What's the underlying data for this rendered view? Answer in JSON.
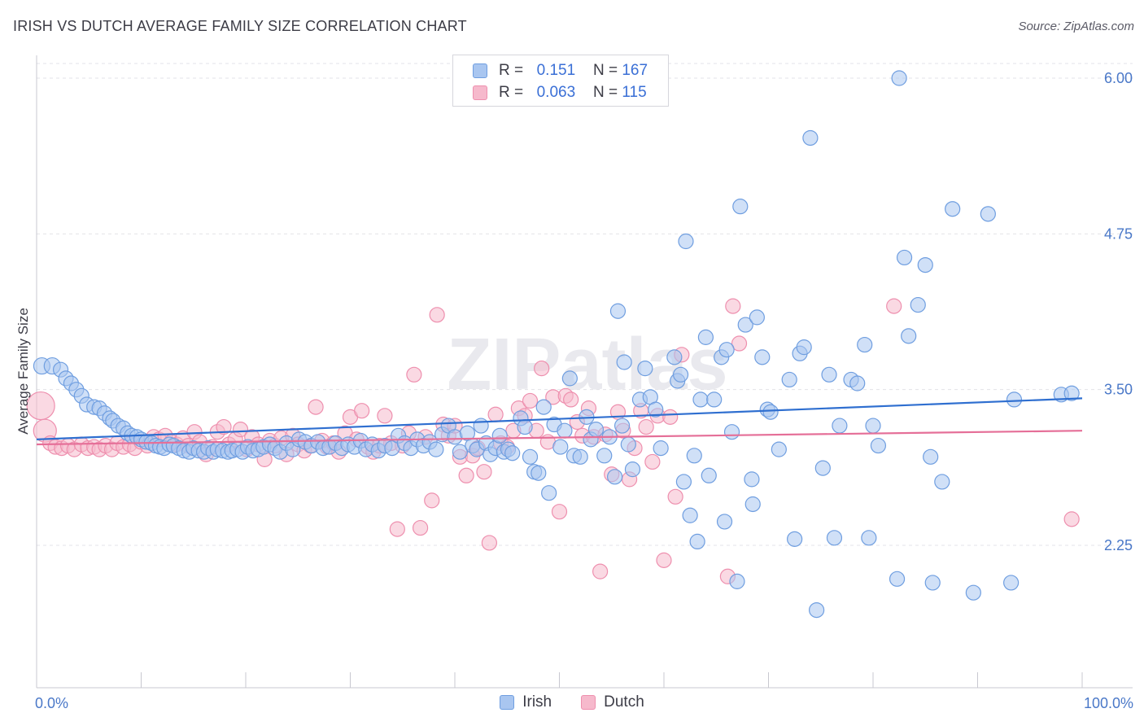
{
  "title": "IRISH VS DUTCH AVERAGE FAMILY SIZE CORRELATION CHART",
  "source": "Source: ZipAtlas.com",
  "watermark": "ZIPatlas",
  "colors": {
    "irish_fill": "#a9c6f0",
    "irish_stroke": "#6f9ee0",
    "irish_line": "#2f6fd0",
    "dutch_fill": "#f6b9cc",
    "dutch_stroke": "#ee8fae",
    "dutch_line": "#e56f98"
  },
  "legend": {
    "irish": {
      "r_label": "R =",
      "r_value": "0.151",
      "n_label": "N =",
      "n_value": "167"
    },
    "dutch": {
      "r_label": "R =",
      "r_value": "0.063",
      "n_label": "N =",
      "n_value": "115"
    }
  },
  "bottom_legend": {
    "irish": "Irish",
    "dutch": "Dutch"
  },
  "chart_data": {
    "type": "scatter",
    "ylabel": "Average Family Size",
    "xlabel": "",
    "xlim": [
      0,
      100
    ],
    "ylim": [
      1.25,
      6.1
    ],
    "x_tick_labels": [
      "0.0%",
      "100.0%"
    ],
    "y_ticks": [
      2.25,
      3.5,
      4.75,
      6.0
    ],
    "y_tick_labels": [
      "2.25",
      "3.50",
      "4.75",
      "6.00"
    ],
    "grid": true,
    "series": [
      {
        "name": "Irish",
        "trend": {
          "x": [
            0,
            100
          ],
          "y": [
            3.1,
            3.43
          ]
        },
        "points": [
          [
            0.5,
            3.69
          ],
          [
            1.5,
            3.69
          ],
          [
            2.3,
            3.66
          ],
          [
            2.8,
            3.59
          ],
          [
            3.3,
            3.55
          ],
          [
            3.8,
            3.5
          ],
          [
            4.3,
            3.45
          ],
          [
            4.8,
            3.38
          ],
          [
            5.5,
            3.36
          ],
          [
            6.0,
            3.35
          ],
          [
            6.5,
            3.31
          ],
          [
            7.0,
            3.27
          ],
          [
            7.3,
            3.25
          ],
          [
            7.8,
            3.21
          ],
          [
            8.3,
            3.19
          ],
          [
            8.7,
            3.15
          ],
          [
            9.1,
            3.13
          ],
          [
            9.6,
            3.12
          ],
          [
            10.0,
            3.1
          ],
          [
            10.5,
            3.08
          ],
          [
            11.0,
            3.07
          ],
          [
            11.4,
            3.05
          ],
          [
            11.8,
            3.04
          ],
          [
            12.2,
            3.03
          ],
          [
            12.7,
            3.06
          ],
          [
            13.1,
            3.05
          ],
          [
            13.6,
            3.03
          ],
          [
            14.1,
            3.01
          ],
          [
            14.6,
            3.0
          ],
          [
            15.0,
            3.03
          ],
          [
            15.5,
            3.01
          ],
          [
            16.0,
            3.0
          ],
          [
            16.4,
            3.03
          ],
          [
            16.9,
            3.0
          ],
          [
            17.3,
            3.02
          ],
          [
            17.8,
            3.01
          ],
          [
            18.3,
            3.0
          ],
          [
            18.7,
            3.01
          ],
          [
            19.2,
            3.02
          ],
          [
            19.7,
            3.0
          ],
          [
            20.2,
            3.04
          ],
          [
            20.7,
            3.01
          ],
          [
            21.2,
            3.02
          ],
          [
            21.7,
            3.04
          ],
          [
            22.3,
            3.06
          ],
          [
            22.8,
            3.03
          ],
          [
            23.3,
            3.0
          ],
          [
            23.9,
            3.07
          ],
          [
            24.5,
            3.02
          ],
          [
            25.1,
            3.1
          ],
          [
            25.7,
            3.08
          ],
          [
            26.3,
            3.05
          ],
          [
            26.9,
            3.08
          ],
          [
            27.4,
            3.03
          ],
          [
            28.0,
            3.04
          ],
          [
            28.6,
            3.07
          ],
          [
            29.2,
            3.03
          ],
          [
            29.8,
            3.06
          ],
          [
            30.4,
            3.04
          ],
          [
            31.0,
            3.09
          ],
          [
            31.5,
            3.02
          ],
          [
            32.1,
            3.06
          ],
          [
            32.7,
            3.01
          ],
          [
            33.3,
            3.05
          ],
          [
            34.0,
            3.03
          ],
          [
            34.6,
            3.13
          ],
          [
            35.2,
            3.07
          ],
          [
            35.8,
            3.03
          ],
          [
            36.4,
            3.1
          ],
          [
            37.0,
            3.05
          ],
          [
            37.6,
            3.08
          ],
          [
            38.2,
            3.02
          ],
          [
            38.8,
            3.14
          ],
          [
            39.4,
            3.21
          ],
          [
            40.0,
            3.12
          ],
          [
            40.5,
            3.0
          ],
          [
            41.2,
            3.15
          ],
          [
            41.7,
            3.05
          ],
          [
            42.1,
            3.02
          ],
          [
            42.5,
            3.21
          ],
          [
            43.0,
            3.07
          ],
          [
            43.4,
            2.98
          ],
          [
            43.9,
            3.03
          ],
          [
            44.3,
            3.13
          ],
          [
            44.7,
            3.0
          ],
          [
            45.1,
            3.02
          ],
          [
            45.5,
            2.99
          ],
          [
            46.3,
            3.27
          ],
          [
            46.7,
            3.2
          ],
          [
            47.2,
            2.96
          ],
          [
            47.6,
            2.84
          ],
          [
            48.0,
            2.83
          ],
          [
            48.5,
            3.36
          ],
          [
            49.0,
            2.67
          ],
          [
            49.5,
            3.22
          ],
          [
            50.1,
            3.04
          ],
          [
            50.5,
            3.17
          ],
          [
            51.0,
            3.59
          ],
          [
            51.4,
            2.97
          ],
          [
            52.0,
            2.96
          ],
          [
            52.6,
            3.28
          ],
          [
            53.0,
            3.1
          ],
          [
            53.5,
            3.18
          ],
          [
            54.3,
            2.97
          ],
          [
            54.8,
            3.12
          ],
          [
            55.3,
            2.8
          ],
          [
            55.6,
            4.13
          ],
          [
            56.0,
            3.21
          ],
          [
            56.2,
            3.72
          ],
          [
            56.6,
            3.06
          ],
          [
            57.0,
            2.86
          ],
          [
            57.7,
            3.42
          ],
          [
            58.2,
            3.67
          ],
          [
            58.7,
            3.44
          ],
          [
            59.2,
            3.34
          ],
          [
            59.7,
            3.03
          ],
          [
            61.0,
            3.76
          ],
          [
            61.3,
            3.57
          ],
          [
            61.6,
            3.62
          ],
          [
            61.9,
            2.76
          ],
          [
            62.1,
            4.69
          ],
          [
            62.5,
            2.49
          ],
          [
            62.9,
            2.97
          ],
          [
            63.2,
            2.28
          ],
          [
            63.5,
            3.42
          ],
          [
            64.0,
            3.92
          ],
          [
            64.3,
            2.81
          ],
          [
            64.8,
            3.42
          ],
          [
            65.5,
            3.76
          ],
          [
            65.8,
            2.44
          ],
          [
            66.0,
            3.82
          ],
          [
            66.5,
            3.16
          ],
          [
            67.0,
            1.96
          ],
          [
            67.3,
            4.97
          ],
          [
            67.8,
            4.02
          ],
          [
            68.4,
            2.78
          ],
          [
            68.9,
            4.08
          ],
          [
            69.4,
            3.76
          ],
          [
            69.9,
            3.34
          ],
          [
            70.2,
            3.32
          ],
          [
            71.0,
            3.02
          ],
          [
            72.0,
            3.58
          ],
          [
            72.5,
            2.3
          ],
          [
            73.0,
            3.79
          ],
          [
            73.4,
            3.84
          ],
          [
            74.0,
            5.52
          ],
          [
            74.6,
            1.73
          ],
          [
            75.2,
            2.87
          ],
          [
            75.8,
            3.62
          ],
          [
            76.3,
            2.31
          ],
          [
            76.8,
            3.21
          ],
          [
            77.9,
            3.58
          ],
          [
            78.5,
            3.55
          ],
          [
            79.2,
            3.86
          ],
          [
            79.6,
            2.31
          ],
          [
            80.0,
            3.21
          ],
          [
            80.5,
            3.05
          ],
          [
            82.3,
            1.98
          ],
          [
            83.0,
            4.56
          ],
          [
            83.4,
            3.93
          ],
          [
            84.3,
            4.18
          ],
          [
            85.0,
            4.5
          ],
          [
            85.5,
            2.96
          ],
          [
            85.7,
            1.95
          ],
          [
            86.6,
            2.76
          ],
          [
            87.6,
            4.95
          ],
          [
            89.6,
            1.87
          ],
          [
            91.0,
            4.91
          ],
          [
            93.2,
            1.95
          ],
          [
            93.5,
            3.42
          ],
          [
            98.0,
            3.46
          ],
          [
            99.0,
            3.47
          ],
          [
            82.5,
            6.0
          ],
          [
            68.5,
            2.58
          ]
        ]
      },
      {
        "name": "Dutch",
        "trend": {
          "x": [
            0,
            100
          ],
          "y": [
            3.06,
            3.17
          ]
        },
        "points": [
          [
            0.4,
            3.37
          ],
          [
            0.8,
            3.17
          ],
          [
            1.3,
            3.07
          ],
          [
            1.8,
            3.04
          ],
          [
            2.4,
            3.03
          ],
          [
            3.0,
            3.05
          ],
          [
            3.6,
            3.02
          ],
          [
            4.3,
            3.06
          ],
          [
            4.9,
            3.03
          ],
          [
            5.5,
            3.04
          ],
          [
            6.0,
            3.02
          ],
          [
            6.6,
            3.05
          ],
          [
            7.2,
            3.02
          ],
          [
            7.7,
            3.07
          ],
          [
            8.3,
            3.04
          ],
          [
            8.9,
            3.06
          ],
          [
            9.4,
            3.03
          ],
          [
            10.0,
            3.08
          ],
          [
            10.6,
            3.05
          ],
          [
            11.2,
            3.12
          ],
          [
            11.7,
            3.1
          ],
          [
            12.3,
            3.13
          ],
          [
            12.9,
            3.08
          ],
          [
            13.4,
            3.06
          ],
          [
            14.0,
            3.11
          ],
          [
            14.5,
            3.05
          ],
          [
            15.1,
            3.16
          ],
          [
            15.6,
            3.08
          ],
          [
            16.2,
            2.98
          ],
          [
            16.8,
            3.04
          ],
          [
            17.3,
            3.16
          ],
          [
            17.9,
            3.2
          ],
          [
            18.4,
            3.06
          ],
          [
            19.0,
            3.1
          ],
          [
            19.5,
            3.18
          ],
          [
            20.1,
            3.02
          ],
          [
            20.6,
            3.12
          ],
          [
            21.2,
            3.06
          ],
          [
            21.8,
            2.94
          ],
          [
            22.3,
            3.09
          ],
          [
            22.8,
            3.05
          ],
          [
            23.4,
            3.11
          ],
          [
            23.9,
            2.98
          ],
          [
            24.5,
            3.13
          ],
          [
            25.0,
            3.06
          ],
          [
            25.6,
            3.01
          ],
          [
            26.2,
            3.05
          ],
          [
            26.7,
            3.36
          ],
          [
            27.3,
            3.09
          ],
          [
            27.8,
            3.04
          ],
          [
            28.4,
            3.07
          ],
          [
            28.9,
            3.0
          ],
          [
            29.5,
            3.15
          ],
          [
            30.0,
            3.28
          ],
          [
            30.6,
            3.1
          ],
          [
            31.1,
            3.33
          ],
          [
            31.7,
            3.04
          ],
          [
            32.2,
            3.0
          ],
          [
            32.8,
            3.05
          ],
          [
            33.3,
            3.29
          ],
          [
            33.9,
            3.07
          ],
          [
            34.5,
            2.38
          ],
          [
            35.0,
            3.05
          ],
          [
            35.6,
            3.15
          ],
          [
            36.1,
            3.62
          ],
          [
            36.7,
            2.39
          ],
          [
            37.2,
            3.12
          ],
          [
            37.8,
            2.61
          ],
          [
            38.3,
            4.1
          ],
          [
            38.9,
            3.22
          ],
          [
            39.4,
            3.13
          ],
          [
            40.0,
            3.21
          ],
          [
            40.5,
            2.96
          ],
          [
            41.1,
            2.81
          ],
          [
            41.7,
            2.97
          ],
          [
            42.2,
            3.03
          ],
          [
            42.8,
            2.84
          ],
          [
            43.3,
            2.27
          ],
          [
            43.9,
            3.3
          ],
          [
            44.4,
            3.07
          ],
          [
            45.0,
            3.04
          ],
          [
            45.6,
            3.17
          ],
          [
            46.1,
            3.35
          ],
          [
            46.7,
            3.29
          ],
          [
            47.2,
            3.41
          ],
          [
            47.8,
            3.17
          ],
          [
            48.3,
            3.67
          ],
          [
            48.9,
            3.08
          ],
          [
            49.4,
            3.44
          ],
          [
            50.0,
            2.52
          ],
          [
            50.6,
            3.45
          ],
          [
            51.1,
            3.42
          ],
          [
            51.7,
            3.24
          ],
          [
            52.2,
            3.13
          ],
          [
            52.8,
            3.35
          ],
          [
            53.3,
            3.12
          ],
          [
            53.9,
            2.04
          ],
          [
            54.4,
            3.14
          ],
          [
            55.0,
            2.82
          ],
          [
            55.6,
            3.32
          ],
          [
            56.1,
            3.17
          ],
          [
            56.7,
            2.78
          ],
          [
            57.2,
            3.03
          ],
          [
            57.8,
            3.33
          ],
          [
            58.3,
            3.2
          ],
          [
            58.9,
            2.92
          ],
          [
            59.4,
            3.29
          ],
          [
            60.0,
            2.13
          ],
          [
            60.6,
            3.28
          ],
          [
            61.1,
            2.64
          ],
          [
            61.7,
            3.78
          ],
          [
            66.1,
            2.0
          ],
          [
            66.6,
            4.17
          ],
          [
            67.2,
            3.87
          ],
          [
            82.0,
            4.17
          ],
          [
            99.0,
            2.46
          ]
        ]
      }
    ]
  }
}
